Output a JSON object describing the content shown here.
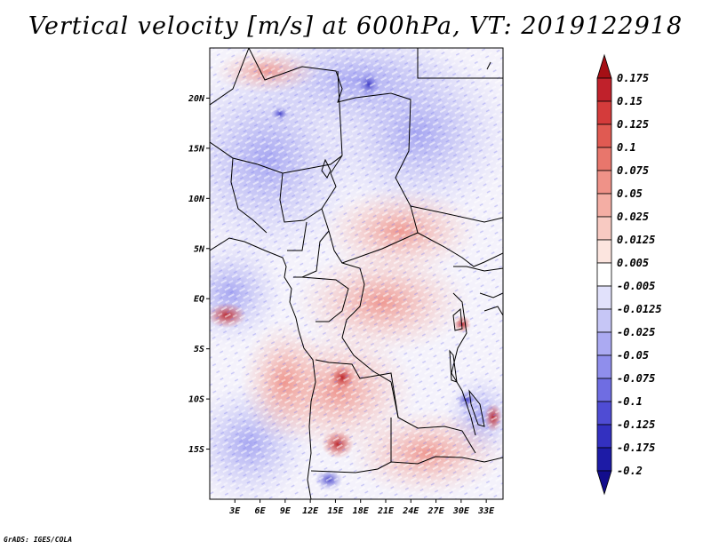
{
  "title": "Vertical velocity [m/s] at 600hPa, VT: 2019122918",
  "credit": "GrADS: IGES/COLA",
  "map": {
    "lon_range": [
      0,
      35
    ],
    "lat_range": [
      -20,
      25
    ],
    "lat_ticks": [
      {
        "value": 20,
        "label": "20N"
      },
      {
        "value": 15,
        "label": "15N"
      },
      {
        "value": 10,
        "label": "10N"
      },
      {
        "value": 5,
        "label": "5N"
      },
      {
        "value": 0,
        "label": "EQ"
      },
      {
        "value": -5,
        "label": "5S"
      },
      {
        "value": -10,
        "label": "10S"
      },
      {
        "value": -15,
        "label": "15S"
      }
    ],
    "lon_ticks": [
      {
        "value": 3,
        "label": "3E"
      },
      {
        "value": 6,
        "label": "6E"
      },
      {
        "value": 9,
        "label": "9E"
      },
      {
        "value": 12,
        "label": "12E"
      },
      {
        "value": 15,
        "label": "15E"
      },
      {
        "value": 18,
        "label": "18E"
      },
      {
        "value": 21,
        "label": "21E"
      },
      {
        "value": 24,
        "label": "24E"
      },
      {
        "value": 27,
        "label": "27E"
      },
      {
        "value": 30,
        "label": "30E"
      },
      {
        "value": 33,
        "label": "33E"
      }
    ]
  },
  "colorbar": {
    "levels": [
      "0.175",
      "0.15",
      "0.125",
      "0.1",
      "0.075",
      "0.05",
      "0.025",
      "0.0125",
      "0.005",
      "-0.005",
      "-0.0125",
      "-0.025",
      "-0.05",
      "-0.075",
      "-0.1",
      "-0.125",
      "-0.175",
      "-0.2"
    ],
    "colors": [
      "#a50f15",
      "#c0212b",
      "#d43b3b",
      "#e05a52",
      "#e8766c",
      "#ef9288",
      "#f4aea4",
      "#f8cac2",
      "#fce5df",
      "#ffffff",
      "#e1e1fb",
      "#c6c6f6",
      "#abaaf2",
      "#8f8eec",
      "#6f6de2",
      "#4f4cd4",
      "#3330c0",
      "#1d1ba6",
      "#120d8c"
    ]
  }
}
